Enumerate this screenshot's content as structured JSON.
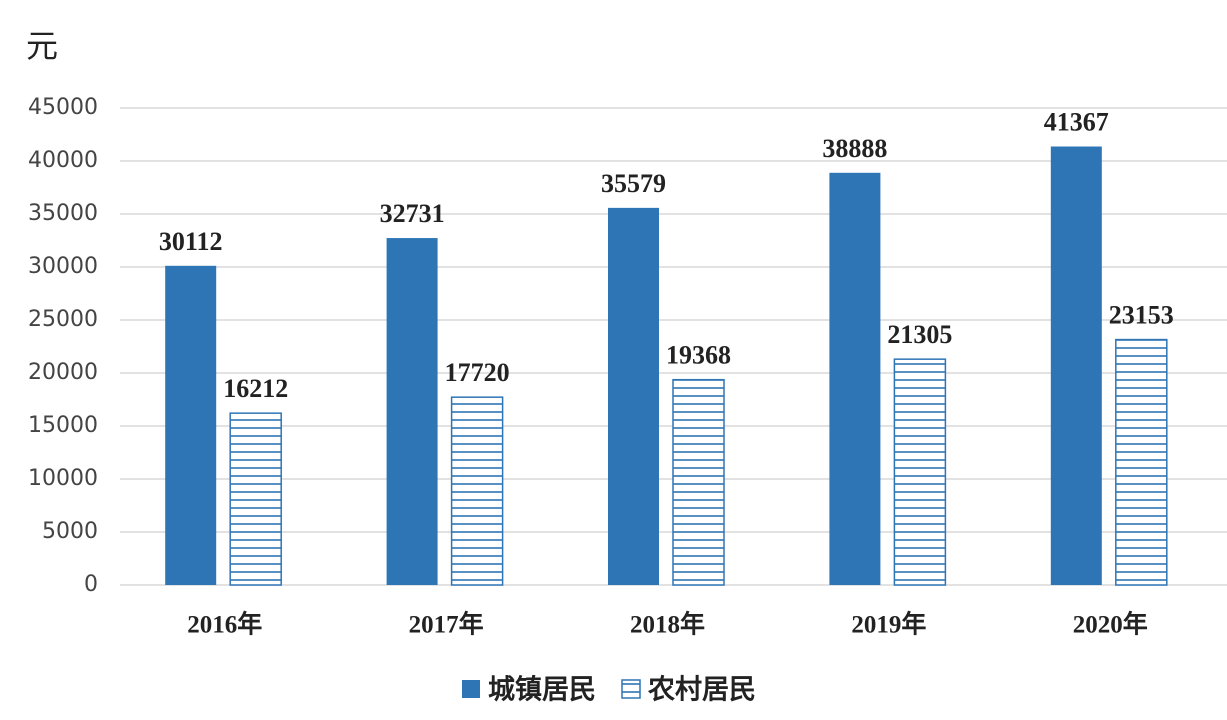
{
  "chart_data": {
    "type": "bar",
    "y_label": "元",
    "categories": [
      "2016年",
      "2017年",
      "2018年",
      "2019年",
      "2020年"
    ],
    "series": [
      {
        "name": "城镇居民",
        "color": "#2e75b6",
        "pattern": "solid",
        "values": [
          30112,
          32731,
          35579,
          38888,
          41367
        ]
      },
      {
        "name": "农村居民",
        "color": "#2e75b6",
        "pattern": "horizontal",
        "values": [
          16212,
          17720,
          19368,
          21305,
          23153
        ]
      }
    ],
    "ylim": [
      0,
      45000
    ],
    "yticks": [
      0,
      5000,
      10000,
      15000,
      20000,
      25000,
      30000,
      35000,
      40000,
      45000
    ],
    "grid": true,
    "legend": "bottom"
  }
}
